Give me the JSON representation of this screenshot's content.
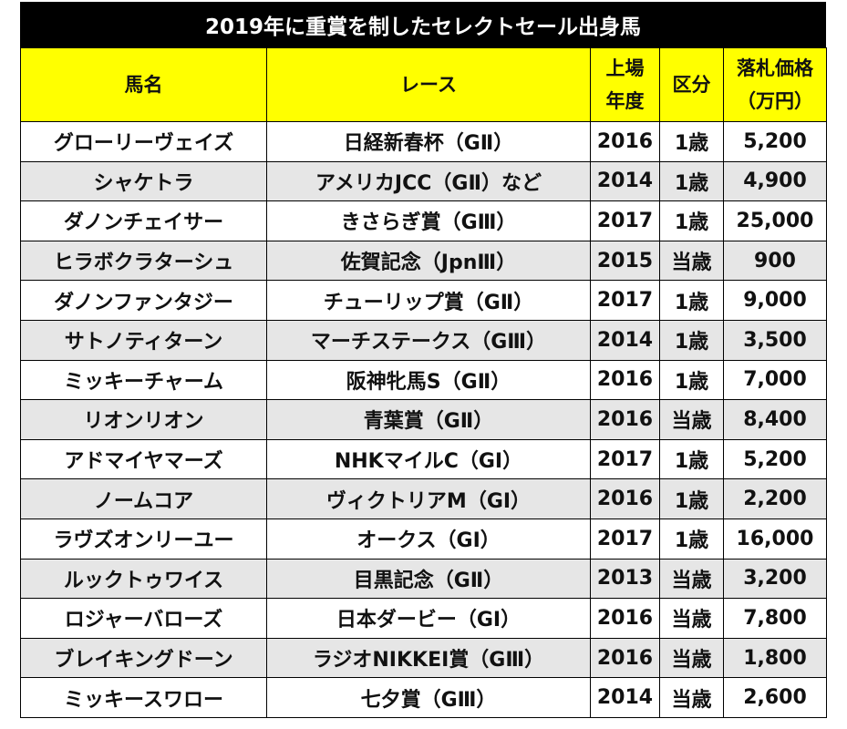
{
  "title": "2019年に重賞を制したセレクトセール出身馬",
  "headers": {
    "name": "馬名",
    "race": "レース",
    "year_1": "上場",
    "year_2": "年度",
    "category": "区分",
    "price_1": "落札価格",
    "price_2": "（万円）"
  },
  "rows": [
    {
      "name": "グローリーヴェイズ",
      "race": "日経新春杯（GⅡ）",
      "year": "2016",
      "category": "1歳",
      "price": "5,200"
    },
    {
      "name": "シャケトラ",
      "race": "アメリカJCC（GⅡ）など",
      "year": "2014",
      "category": "1歳",
      "price": "4,900"
    },
    {
      "name": "ダノンチェイサー",
      "race": "きさらぎ賞（GⅢ）",
      "year": "2017",
      "category": "1歳",
      "price": "25,000"
    },
    {
      "name": "ヒラボクラターシュ",
      "race": "佐賀記念（JpnⅢ）",
      "year": "2015",
      "category": "当歳",
      "price": "900"
    },
    {
      "name": "ダノンファンタジー",
      "race": "チューリップ賞（GⅡ）",
      "year": "2017",
      "category": "1歳",
      "price": "9,000"
    },
    {
      "name": "サトノティターン",
      "race": "マーチステークス（GⅢ）",
      "year": "2014",
      "category": "1歳",
      "price": "3,500"
    },
    {
      "name": "ミッキーチャーム",
      "race": "阪神牝馬S（GⅡ）",
      "year": "2016",
      "category": "1歳",
      "price": "7,000"
    },
    {
      "name": "リオンリオン",
      "race": "青葉賞（GⅡ）",
      "year": "2016",
      "category": "当歳",
      "price": "8,400"
    },
    {
      "name": "アドマイヤマーズ",
      "race": "NHKマイルC（GⅠ）",
      "year": "2017",
      "category": "1歳",
      "price": "5,200"
    },
    {
      "name": "ノームコア",
      "race": "ヴィクトリアM（GⅠ）",
      "year": "2016",
      "category": "1歳",
      "price": "2,200"
    },
    {
      "name": "ラヴズオンリーユー",
      "race": "オークス（GⅠ）",
      "year": "2017",
      "category": "1歳",
      "price": "16,000"
    },
    {
      "name": "ルックトゥワイス",
      "race": "目黒記念（GⅡ）",
      "year": "2013",
      "category": "当歳",
      "price": "3,200"
    },
    {
      "name": "ロジャーバローズ",
      "race": "日本ダービー（GⅠ）",
      "year": "2016",
      "category": "当歳",
      "price": "7,800"
    },
    {
      "name": "ブレイキングドーン",
      "race": "ラジオNIKKEI賞（GⅢ）",
      "year": "2016",
      "category": "当歳",
      "price": "1,800"
    },
    {
      "name": "ミッキースワロー",
      "race": "七夕賞（GⅢ）",
      "year": "2014",
      "category": "当歳",
      "price": "2,600"
    }
  ],
  "colors": {
    "title_bg": "#000000",
    "header_bg": "#ffff00",
    "alt_row_bg": "#e6e6e6"
  }
}
